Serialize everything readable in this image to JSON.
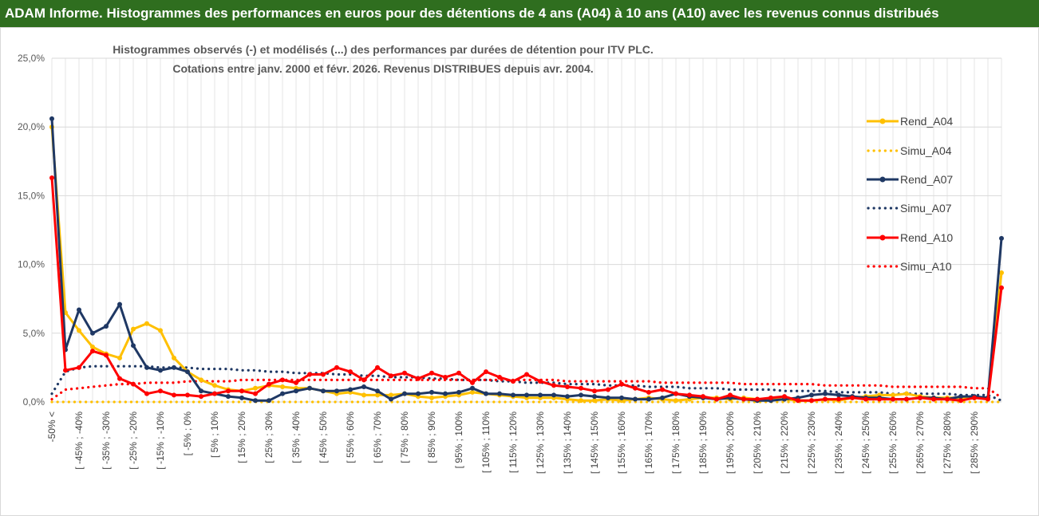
{
  "header": {
    "title": "ADAM Informe. Histogrammes des performances en euros pour des détentions de 4 ans (A04) à 10 ans (A10) avec les revenus connus distribués"
  },
  "chart_data": {
    "type": "line",
    "title_lines": [
      "Histogrammes observés (-) et modélisés (...) des performances par durées de détention pour ITV PLC.",
      "Cotations entre janv. 2000 et févr. 2026. Revenus DISTRIBUES depuis avr. 2004."
    ],
    "ylim": [
      0,
      25
    ],
    "y_ticks": [
      "0,0%",
      "5,0%",
      "10,0%",
      "15,0%",
      "20,0%",
      "25,0%"
    ],
    "y_tick_values": [
      0,
      5,
      10,
      15,
      20,
      25
    ],
    "grid": true,
    "legend_position": "right",
    "x_tick_labels": [
      "-50% <",
      "[ -45% ; -40%",
      "[ -35% ; -30%",
      "[ -25% ; -20%",
      "[ -15% ; -10%",
      "[ -5% ; 0%",
      "[ 5% ; 10%",
      "[ 15% ; 20%",
      "[ 25% ; 30%",
      "[ 35% ; 40%",
      "[ 45% ; 50%",
      "[ 55% ; 60%",
      "[ 65% ; 70%",
      "[ 75% ; 80%",
      "[ 85% ; 90%",
      "[ 95% ; 100%",
      "[ 105% ; 110%",
      "[ 115% ; 120%",
      "[ 125% ; 130%",
      "[ 135% ; 140%",
      "[ 145% ; 150%",
      "[ 155% ; 160%",
      "[ 165% ; 170%",
      "[ 175% ; 180%",
      "[ 185% ; 190%",
      "[ 195% ; 200%",
      "[ 205% ; 210%",
      "[ 215% ; 220%",
      "[ 225% ; 230%",
      "[ 235% ; 240%",
      "[ 245% ; 250%",
      "[ 255% ; 260%",
      "[ 265% ; 270%",
      "[ 275% ; 280%",
      "[ 285% ; 290%"
    ],
    "x_tick_step": 2,
    "n_categories": 71,
    "series": [
      {
        "name": "Rend_A04",
        "color": "#ffc000",
        "style": "solid",
        "values": [
          20.0,
          6.5,
          5.2,
          4.0,
          3.5,
          3.2,
          5.3,
          5.7,
          5.2,
          3.2,
          2.2,
          1.6,
          1.2,
          0.9,
          0.8,
          1.0,
          1.2,
          1.1,
          1.0,
          1.0,
          0.8,
          0.6,
          0.7,
          0.5,
          0.5,
          0.5,
          0.6,
          0.4,
          0.3,
          0.4,
          0.5,
          0.7,
          0.6,
          0.5,
          0.4,
          0.3,
          0.3,
          0.3,
          0.2,
          0.1,
          0.1,
          0.2,
          0.1,
          0.2,
          0.3,
          0.2,
          0.1,
          0.2,
          0.3,
          0.3,
          0.2,
          0.3,
          0.2,
          0.2,
          0.2,
          0.1,
          0.1,
          0.2,
          0.1,
          0.3,
          0.4,
          0.5,
          0.5,
          0.6,
          0.4,
          0.3,
          0.3,
          0.3,
          0.3,
          0.3,
          9.4
        ]
      },
      {
        "name": "Simu_A04",
        "color": "#ffc000",
        "style": "dotted",
        "values": [
          0.0,
          0.0,
          0.0,
          0.0,
          0.0,
          0.0,
          0.0,
          0.0,
          0.0,
          0.0,
          0.0,
          0.0,
          0.0,
          0.0,
          0.0,
          0.0,
          0.0,
          0.0,
          0.0,
          0.0,
          0.0,
          0.0,
          0.0,
          0.0,
          0.0,
          0.0,
          0.0,
          0.0,
          0.0,
          0.0,
          0.0,
          0.0,
          0.0,
          0.0,
          0.0,
          0.0,
          0.0,
          0.0,
          0.0,
          0.0,
          0.0,
          0.0,
          0.0,
          0.0,
          0.0,
          0.0,
          0.0,
          0.0,
          0.0,
          0.0,
          0.0,
          0.0,
          0.0,
          0.0,
          0.0,
          0.0,
          0.0,
          0.0,
          0.0,
          0.0,
          0.0,
          0.0,
          0.0,
          0.0,
          0.0,
          0.0,
          0.0,
          0.0,
          0.0,
          0.0,
          0.0
        ]
      },
      {
        "name": "Rend_A07",
        "color": "#1f3864",
        "style": "solid",
        "values": [
          20.6,
          3.8,
          6.7,
          5.0,
          5.5,
          7.1,
          4.1,
          2.5,
          2.3,
          2.5,
          2.2,
          0.8,
          0.6,
          0.4,
          0.3,
          0.1,
          0.1,
          0.6,
          0.8,
          1.0,
          0.8,
          0.8,
          0.9,
          1.1,
          0.8,
          0.2,
          0.6,
          0.6,
          0.7,
          0.6,
          0.7,
          1.0,
          0.6,
          0.6,
          0.5,
          0.5,
          0.5,
          0.5,
          0.4,
          0.5,
          0.4,
          0.3,
          0.3,
          0.2,
          0.2,
          0.3,
          0.6,
          0.4,
          0.3,
          0.2,
          0.3,
          0.2,
          0.1,
          0.1,
          0.2,
          0.3,
          0.5,
          0.6,
          0.5,
          0.4,
          0.3,
          0.3,
          0.2,
          0.2,
          0.3,
          0.3,
          0.2,
          0.4,
          0.4,
          0.3,
          11.9
        ]
      },
      {
        "name": "Simu_A07",
        "color": "#1f3864",
        "style": "dotted",
        "values": [
          0.6,
          2.2,
          2.5,
          2.6,
          2.6,
          2.6,
          2.6,
          2.6,
          2.5,
          2.5,
          2.5,
          2.4,
          2.4,
          2.4,
          2.3,
          2.3,
          2.2,
          2.2,
          2.1,
          2.1,
          2.1,
          2.0,
          2.0,
          1.9,
          1.9,
          1.8,
          1.8,
          1.8,
          1.7,
          1.7,
          1.6,
          1.6,
          1.6,
          1.5,
          1.5,
          1.4,
          1.4,
          1.4,
          1.3,
          1.3,
          1.3,
          1.2,
          1.2,
          1.2,
          1.1,
          1.1,
          1.1,
          1.0,
          1.0,
          1.0,
          0.9,
          0.9,
          0.9,
          0.9,
          0.8,
          0.8,
          0.8,
          0.8,
          0.7,
          0.7,
          0.7,
          0.7,
          0.6,
          0.6,
          0.6,
          0.6,
          0.6,
          0.5,
          0.5,
          0.5,
          0.1
        ]
      },
      {
        "name": "Rend_A10",
        "color": "#ff0000",
        "style": "solid",
        "values": [
          16.3,
          2.3,
          2.5,
          3.7,
          3.4,
          1.7,
          1.3,
          0.6,
          0.8,
          0.5,
          0.5,
          0.4,
          0.6,
          0.8,
          0.8,
          0.6,
          1.3,
          1.6,
          1.4,
          2.0,
          2.0,
          2.5,
          2.2,
          1.6,
          2.5,
          1.9,
          2.1,
          1.7,
          2.1,
          1.8,
          2.1,
          1.4,
          2.2,
          1.8,
          1.5,
          2.0,
          1.5,
          1.2,
          1.1,
          1.0,
          0.8,
          0.9,
          1.3,
          1.0,
          0.7,
          0.9,
          0.6,
          0.5,
          0.4,
          0.2,
          0.5,
          0.2,
          0.2,
          0.3,
          0.4,
          0.1,
          0.1,
          0.2,
          0.2,
          0.3,
          0.2,
          0.2,
          0.2,
          0.2,
          0.3,
          0.2,
          0.2,
          0.1,
          0.3,
          0.2,
          8.3
        ]
      },
      {
        "name": "Simu_A10",
        "color": "#ff0000",
        "style": "dotted",
        "values": [
          0.2,
          0.9,
          1.0,
          1.1,
          1.2,
          1.3,
          1.3,
          1.4,
          1.4,
          1.4,
          1.5,
          1.5,
          1.5,
          1.5,
          1.6,
          1.6,
          1.6,
          1.6,
          1.6,
          1.6,
          1.6,
          1.6,
          1.6,
          1.6,
          1.6,
          1.6,
          1.6,
          1.6,
          1.6,
          1.6,
          1.6,
          1.6,
          1.6,
          1.6,
          1.6,
          1.6,
          1.6,
          1.6,
          1.5,
          1.5,
          1.5,
          1.5,
          1.5,
          1.5,
          1.5,
          1.4,
          1.4,
          1.4,
          1.4,
          1.4,
          1.4,
          1.3,
          1.3,
          1.3,
          1.3,
          1.3,
          1.3,
          1.2,
          1.2,
          1.2,
          1.2,
          1.2,
          1.1,
          1.1,
          1.1,
          1.1,
          1.1,
          1.1,
          1.0,
          1.0,
          0.3
        ]
      }
    ]
  }
}
